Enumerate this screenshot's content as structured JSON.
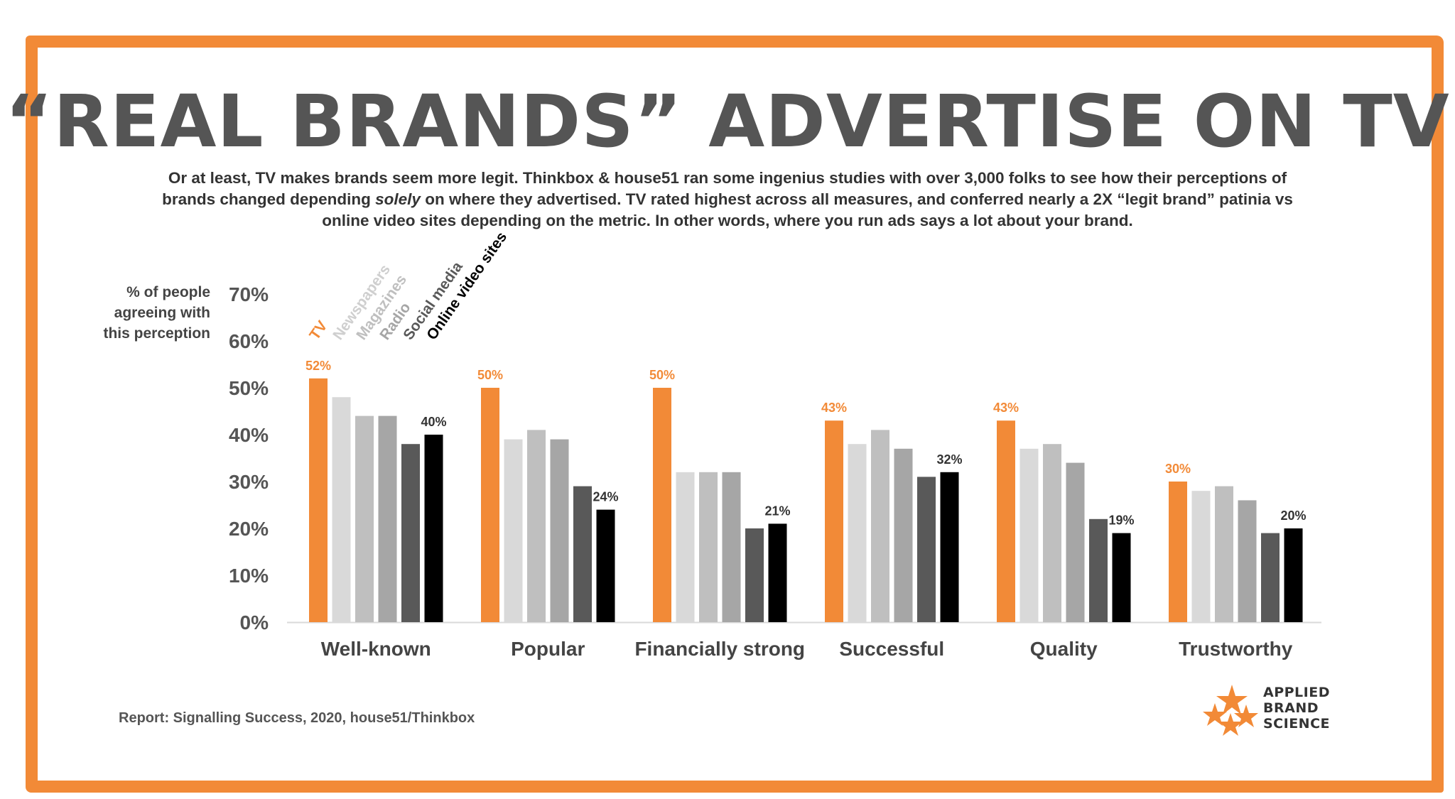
{
  "header": {
    "title": "“REAL BRANDS” ADVERTISE ON TV",
    "subtitle": {
      "line1": "Or at least, TV makes brands seem more legit. Thinkbox & house51 ran some ingenius studies with over 3,000 folks to see how their perceptions of",
      "line2_pre": "brands changed depending ",
      "line2_em": "solely",
      "line2_post": " on where they advertised. TV rated highest across all measures, and conferred nearly a 2X “legit brand” patinia vs",
      "line3": "online video sites depending on the metric. In other words, where you run ads says a lot about your brand."
    }
  },
  "yaxis_title": {
    "line1": "% of people",
    "line2": "agreeing with",
    "line3": "this perception"
  },
  "footer": {
    "source": "Report: Signalling Success, 2020, house51/Thinkbox"
  },
  "logo": {
    "line1": "APPLIED",
    "line2": "BRAND",
    "line3": "SCIENCE",
    "icon": "star-cluster-icon"
  },
  "colors": {
    "frame": "#f28a37",
    "title": "#555555",
    "axis_text": "#555555"
  },
  "chart_data": {
    "type": "bar",
    "categories": [
      "Well-known",
      "Popular",
      "Financially strong",
      "Successful",
      "Quality",
      "Trustworthy"
    ],
    "series": [
      {
        "name": "TV",
        "color": "#f28a37",
        "values": [
          52,
          50,
          50,
          43,
          43,
          30
        ]
      },
      {
        "name": "Newspapers",
        "color": "#d9d9d9",
        "values": [
          48,
          39,
          32,
          38,
          37,
          28
        ]
      },
      {
        "name": "Magazines",
        "color": "#bfbfbf",
        "values": [
          44,
          41,
          32,
          41,
          38,
          29
        ]
      },
      {
        "name": "Radio",
        "color": "#a6a6a6",
        "values": [
          44,
          39,
          32,
          37,
          34,
          26
        ]
      },
      {
        "name": "Social media",
        "color": "#595959",
        "values": [
          38,
          29,
          20,
          31,
          22,
          19
        ]
      },
      {
        "name": "Online video sites",
        "color": "#000000",
        "values": [
          40,
          24,
          21,
          32,
          19,
          20
        ]
      }
    ],
    "data_labels": [
      {
        "series": "TV",
        "category": "Well-known",
        "text": "52%"
      },
      {
        "series": "Online video sites",
        "category": "Well-known",
        "text": "40%"
      },
      {
        "series": "TV",
        "category": "Popular",
        "text": "50%"
      },
      {
        "series": "Online video sites",
        "category": "Popular",
        "text": "24%"
      },
      {
        "series": "TV",
        "category": "Financially strong",
        "text": "50%"
      },
      {
        "series": "Online video sites",
        "category": "Financially strong",
        "text": "21%"
      },
      {
        "series": "TV",
        "category": "Successful",
        "text": "43%"
      },
      {
        "series": "Online video sites",
        "category": "Successful",
        "text": "32%"
      },
      {
        "series": "TV",
        "category": "Quality",
        "text": "43%"
      },
      {
        "series": "Online video sites",
        "category": "Quality",
        "text": "19%"
      },
      {
        "series": "TV",
        "category": "Trustworthy",
        "text": "30%"
      },
      {
        "series": "Online video sites",
        "category": "Trustworthy",
        "text": "20%"
      }
    ],
    "title": "",
    "xlabel": "",
    "ylabel": "% of people agreeing with this perception",
    "ylim": [
      0,
      70
    ],
    "yticks": [
      0,
      10,
      20,
      30,
      40,
      50,
      60,
      70
    ],
    "ytick_labels": [
      "0%",
      "10%",
      "20%",
      "30%",
      "40%",
      "50%",
      "60%",
      "70%"
    ],
    "grid": false,
    "legend_position": "top-left, rotated labels"
  }
}
